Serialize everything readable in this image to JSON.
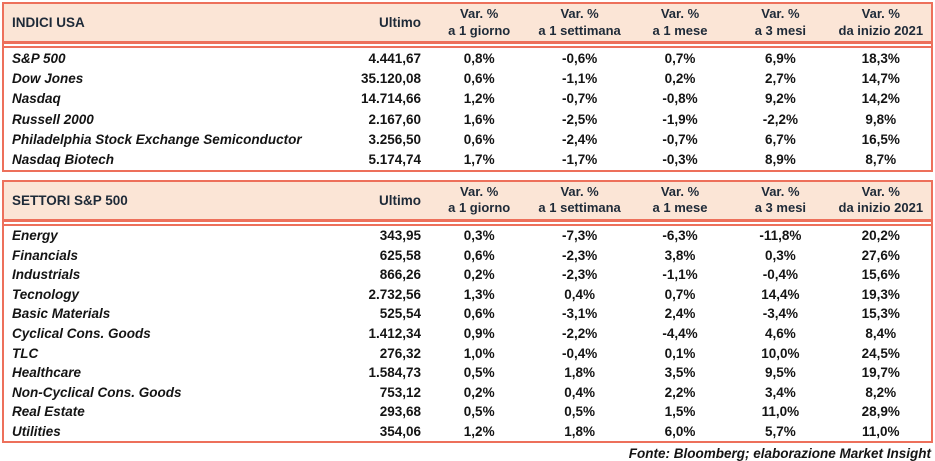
{
  "colors": {
    "border": "#ED705B",
    "header_bg": "#FBE5D6",
    "header_text": "#1E2A38",
    "body_text": "#141414"
  },
  "footer": {
    "source_note": "Fonte: Bloomberg; elaborazione Market Insight"
  },
  "tables": [
    {
      "title": "INDICI USA",
      "ultimo_label": "Ultimo",
      "var_label": "Var. %",
      "periods": [
        "a 1 giorno",
        "a 1 settimana",
        "a 1 mese",
        "a 3 mesi",
        "da inizio 2021"
      ],
      "rows": [
        {
          "name": "S&P 500",
          "ultimo": "4.441,67",
          "v": [
            "0,8%",
            "-0,6%",
            "0,7%",
            "6,9%",
            "18,3%"
          ]
        },
        {
          "name": "Dow Jones",
          "ultimo": "35.120,08",
          "v": [
            "0,6%",
            "-1,1%",
            "0,2%",
            "2,7%",
            "14,7%"
          ]
        },
        {
          "name": "Nasdaq",
          "ultimo": "14.714,66",
          "v": [
            "1,2%",
            "-0,7%",
            "-0,8%",
            "9,2%",
            "14,2%"
          ]
        },
        {
          "name": "Russell 2000",
          "ultimo": "2.167,60",
          "v": [
            "1,6%",
            "-2,5%",
            "-1,9%",
            "-2,2%",
            "9,8%"
          ]
        },
        {
          "name": "Philadelphia Stock Exchange Semiconductor",
          "ultimo": "3.256,50",
          "v": [
            "0,6%",
            "-2,4%",
            "-0,7%",
            "6,7%",
            "16,5%"
          ]
        },
        {
          "name": "Nasdaq Biotech",
          "ultimo": "5.174,74",
          "v": [
            "1,7%",
            "-1,7%",
            "-0,3%",
            "8,9%",
            "8,7%"
          ]
        }
      ]
    },
    {
      "title": "SETTORI S&P 500",
      "ultimo_label": "Ultimo",
      "var_label": "Var. %",
      "periods": [
        "a 1 giorno",
        "a 1 settimana",
        "a 1 mese",
        "a 3 mesi",
        "da inizio 2021"
      ],
      "rows": [
        {
          "name": "Energy",
          "ultimo": "343,95",
          "v": [
            "0,3%",
            "-7,3%",
            "-6,3%",
            "-11,8%",
            "20,2%"
          ]
        },
        {
          "name": "Financials",
          "ultimo": "625,58",
          "v": [
            "0,6%",
            "-2,3%",
            "3,8%",
            "0,3%",
            "27,6%"
          ]
        },
        {
          "name": "Industrials",
          "ultimo": "866,26",
          "v": [
            "0,2%",
            "-2,3%",
            "-1,1%",
            "-0,4%",
            "15,6%"
          ]
        },
        {
          "name": "Tecnology",
          "ultimo": "2.732,56",
          "v": [
            "1,3%",
            "0,4%",
            "0,7%",
            "14,4%",
            "19,3%"
          ]
        },
        {
          "name": "Basic Materials",
          "ultimo": "525,54",
          "v": [
            "0,6%",
            "-3,1%",
            "2,4%",
            "-3,4%",
            "15,3%"
          ]
        },
        {
          "name": "Cyclical Cons. Goods",
          "ultimo": "1.412,34",
          "v": [
            "0,9%",
            "-2,2%",
            "-4,4%",
            "4,6%",
            "8,4%"
          ]
        },
        {
          "name": "TLC",
          "ultimo": "276,32",
          "v": [
            "1,0%",
            "-0,4%",
            "0,1%",
            "10,0%",
            "24,5%"
          ]
        },
        {
          "name": "Healthcare",
          "ultimo": "1.584,73",
          "v": [
            "0,5%",
            "1,8%",
            "3,5%",
            "9,5%",
            "19,7%"
          ]
        },
        {
          "name": "Non-Cyclical Cons. Goods",
          "ultimo": "753,12",
          "v": [
            "0,2%",
            "0,4%",
            "2,2%",
            "3,4%",
            "8,2%"
          ]
        },
        {
          "name": "Real Estate",
          "ultimo": "293,68",
          "v": [
            "0,5%",
            "0,5%",
            "1,5%",
            "11,0%",
            "28,9%"
          ]
        },
        {
          "name": "Utilities",
          "ultimo": "354,06",
          "v": [
            "1,2%",
            "1,8%",
            "6,0%",
            "5,7%",
            "11,0%"
          ]
        }
      ]
    }
  ],
  "chart_data": [
    {
      "type": "table",
      "title": "INDICI USA",
      "columns": [
        "Ultimo",
        "Var. % a 1 giorno",
        "Var. % a 1 settimana",
        "Var. % a 1 mese",
        "Var. % a 3 mesi",
        "Var. % da inizio 2021"
      ],
      "rows": [
        [
          "S&P 500",
          "4.441,67",
          "0,8%",
          "-0,6%",
          "0,7%",
          "6,9%",
          "18,3%"
        ],
        [
          "Dow Jones",
          "35.120,08",
          "0,6%",
          "-1,1%",
          "0,2%",
          "2,7%",
          "14,7%"
        ],
        [
          "Nasdaq",
          "14.714,66",
          "1,2%",
          "-0,7%",
          "-0,8%",
          "9,2%",
          "14,2%"
        ],
        [
          "Russell 2000",
          "2.167,60",
          "1,6%",
          "-2,5%",
          "-1,9%",
          "-2,2%",
          "9,8%"
        ],
        [
          "Philadelphia Stock Exchange Semiconductor",
          "3.256,50",
          "0,6%",
          "-2,4%",
          "-0,7%",
          "6,7%",
          "16,5%"
        ],
        [
          "Nasdaq Biotech",
          "5.174,74",
          "1,7%",
          "-1,7%",
          "-0,3%",
          "8,9%",
          "8,7%"
        ]
      ]
    },
    {
      "type": "table",
      "title": "SETTORI S&P 500",
      "columns": [
        "Ultimo",
        "Var. % a 1 giorno",
        "Var. % a 1 settimana",
        "Var. % a 1 mese",
        "Var. % a 3 mesi",
        "Var. % da inizio 2021"
      ],
      "rows": [
        [
          "Energy",
          "343,95",
          "0,3%",
          "-7,3%",
          "-6,3%",
          "-11,8%",
          "20,2%"
        ],
        [
          "Financials",
          "625,58",
          "0,6%",
          "-2,3%",
          "3,8%",
          "0,3%",
          "27,6%"
        ],
        [
          "Industrials",
          "866,26",
          "0,2%",
          "-2,3%",
          "-1,1%",
          "-0,4%",
          "15,6%"
        ],
        [
          "Tecnology",
          "2.732,56",
          "1,3%",
          "0,4%",
          "0,7%",
          "14,4%",
          "19,3%"
        ],
        [
          "Basic Materials",
          "525,54",
          "0,6%",
          "-3,1%",
          "2,4%",
          "-3,4%",
          "15,3%"
        ],
        [
          "Cyclical Cons. Goods",
          "1.412,34",
          "0,9%",
          "-2,2%",
          "-4,4%",
          "4,6%",
          "8,4%"
        ],
        [
          "TLC",
          "276,32",
          "1,0%",
          "-0,4%",
          "0,1%",
          "10,0%",
          "24,5%"
        ],
        [
          "Healthcare",
          "1.584,73",
          "0,5%",
          "1,8%",
          "3,5%",
          "9,5%",
          "19,7%"
        ],
        [
          "Non-Cyclical Cons. Goods",
          "753,12",
          "0,2%",
          "0,4%",
          "2,2%",
          "3,4%",
          "8,2%"
        ],
        [
          "Real Estate",
          "293,68",
          "0,5%",
          "0,5%",
          "1,5%",
          "11,0%",
          "28,9%"
        ],
        [
          "Utilities",
          "354,06",
          "1,2%",
          "1,8%",
          "6,0%",
          "5,7%",
          "11,0%"
        ]
      ]
    }
  ]
}
